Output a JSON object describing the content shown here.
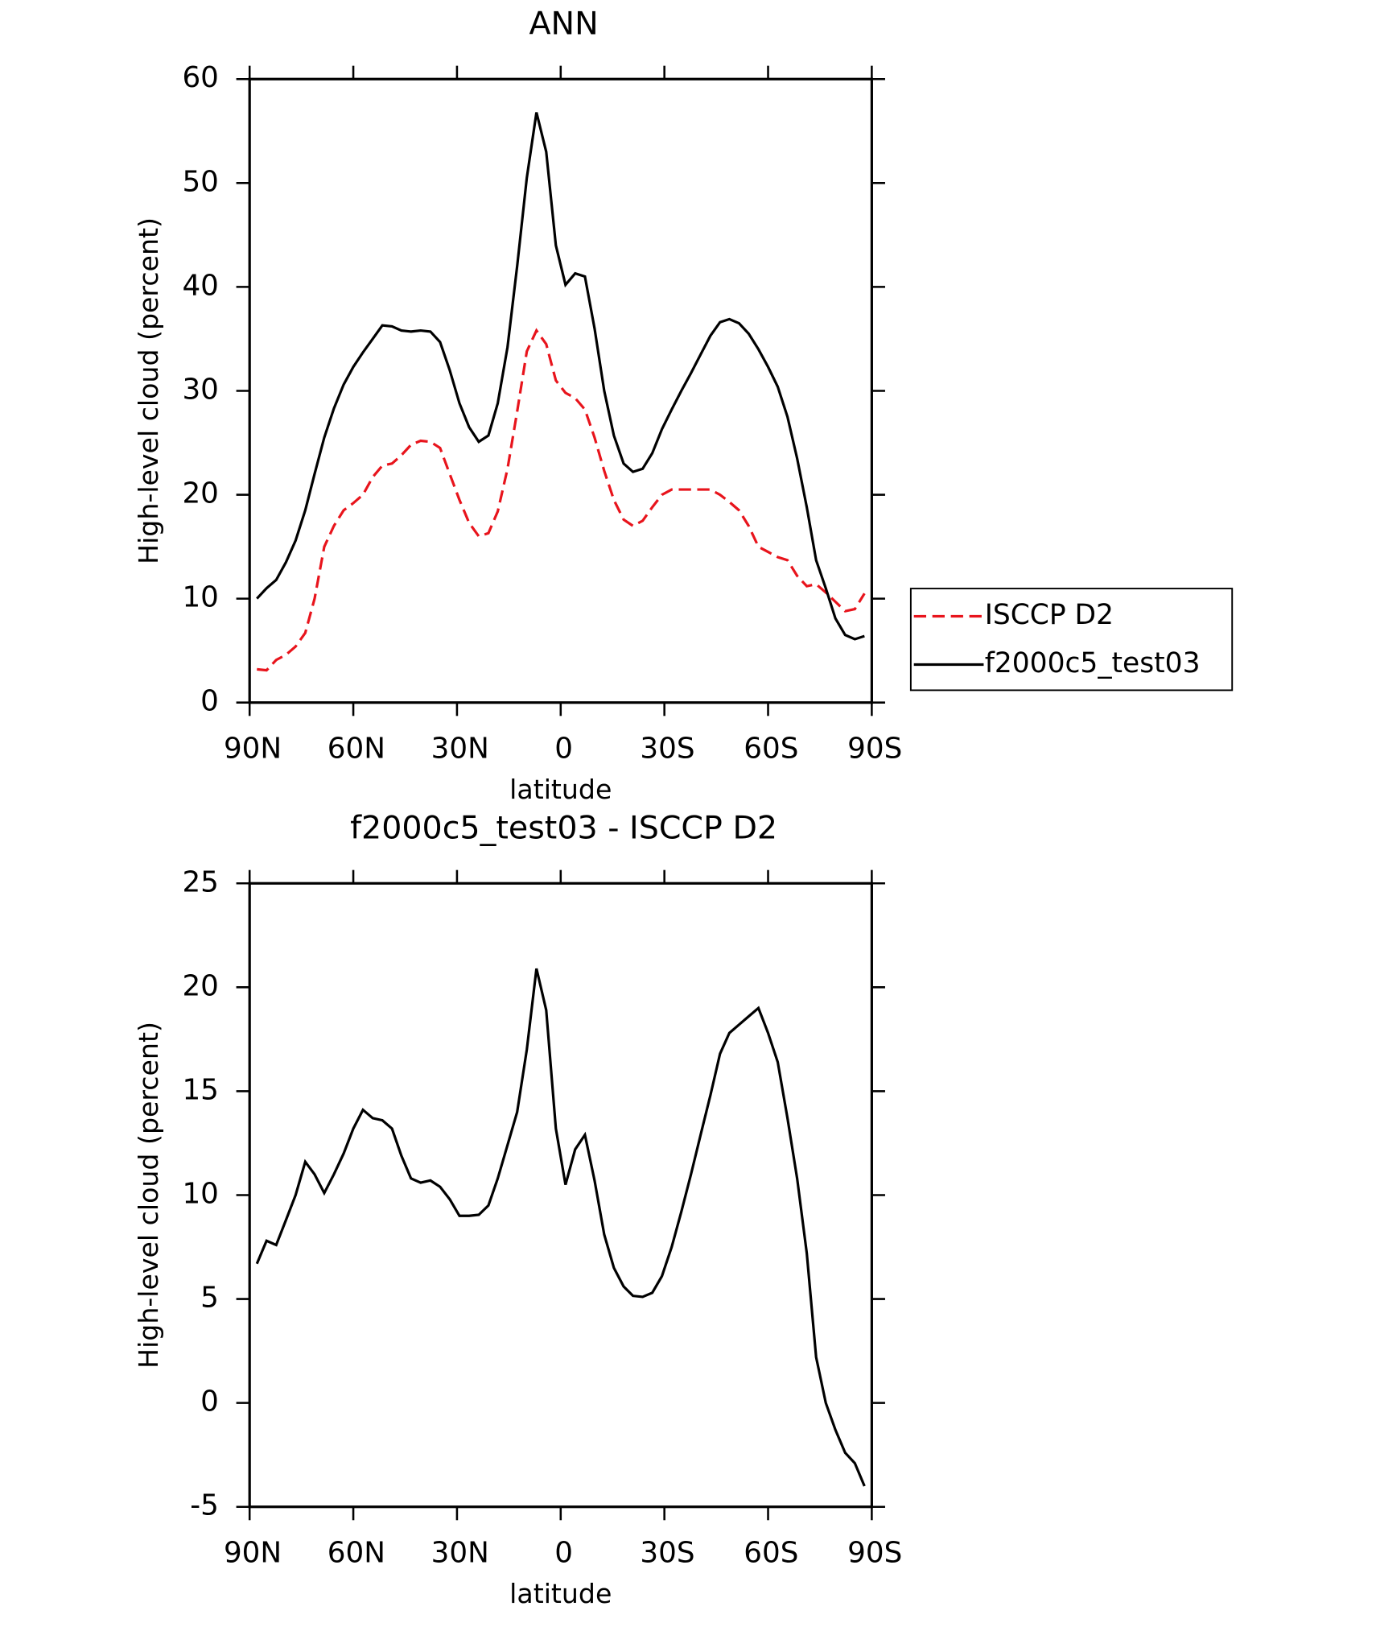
{
  "chart_data": [
    {
      "type": "line",
      "title": "ANN",
      "xlabel": "latitude",
      "ylabel": "High-level cloud (percent)",
      "x": [
        87.9,
        85.1,
        82.3,
        79.5,
        76.7,
        73.9,
        71.2,
        68.4,
        65.6,
        62.8,
        60.0,
        57.2,
        54.4,
        51.6,
        48.8,
        46.1,
        43.3,
        40.5,
        37.7,
        34.9,
        32.1,
        29.3,
        26.5,
        23.7,
        20.9,
        18.2,
        15.4,
        12.6,
        9.8,
        7.0,
        4.2,
        1.4,
        -1.4,
        -4.2,
        -7.0,
        -9.8,
        -12.6,
        -15.4,
        -18.2,
        -20.9,
        -23.7,
        -26.5,
        -29.3,
        -32.1,
        -34.9,
        -37.7,
        -40.5,
        -43.3,
        -46.1,
        -48.8,
        -51.6,
        -54.4,
        -57.2,
        -60.0,
        -62.8,
        -65.6,
        -68.4,
        -71.2,
        -73.9,
        -76.7,
        -79.5,
        -82.3,
        -85.1,
        -87.9
      ],
      "series": [
        {
          "name": "ISCCP D2",
          "color": "#e8141c",
          "dash": true,
          "values": [
            3.2,
            3.1,
            4.1,
            4.6,
            5.4,
            6.7,
            10,
            15,
            17,
            18.5,
            19.2,
            20,
            21.7,
            22.8,
            23,
            23.8,
            24.8,
            25.2,
            25.1,
            24.5,
            22,
            19.5,
            17.3,
            16,
            16.3,
            18.4,
            22.5,
            28,
            33.8,
            35.8,
            34.5,
            31,
            29.8,
            29.3,
            28.2,
            25.5,
            22.3,
            19.5,
            17.6,
            17,
            17.5,
            18.8,
            20,
            20.5,
            20.5,
            20.5,
            20.5,
            20.5,
            20,
            19.3,
            18.5,
            17,
            15,
            14.5,
            14,
            13.7,
            12.2,
            11.2,
            11.4,
            10.6,
            9.7,
            8.8,
            9,
            10.5
          ]
        },
        {
          "name": "f2000c5_test03",
          "color": "#000000",
          "dash": false,
          "values": [
            10,
            11,
            11.8,
            13.5,
            15.6,
            18.5,
            22,
            25.5,
            28.3,
            30.6,
            32.3,
            33.7,
            35,
            36.3,
            36.2,
            35.8,
            35.7,
            35.8,
            35.7,
            34.7,
            32,
            28.8,
            26.5,
            25.1,
            25.7,
            28.8,
            34.2,
            42,
            50.5,
            56.8,
            53,
            44,
            40.2,
            41.3,
            41,
            36,
            30,
            25.7,
            23,
            22.2,
            22.5,
            24,
            26.3,
            28.2,
            30,
            31.7,
            33.5,
            35.3,
            36.6,
            36.9,
            36.5,
            35.5,
            34,
            32.3,
            30.4,
            27.5,
            23.5,
            18.8,
            13.7,
            11,
            8.1,
            6.5,
            6.1,
            6.4
          ]
        }
      ],
      "xlim": [
        90,
        -90
      ],
      "xticks": [
        {
          "value": 90,
          "label": "90N"
        },
        {
          "value": 60,
          "label": "60N"
        },
        {
          "value": 30,
          "label": "30N"
        },
        0,
        {
          "value": -30,
          "label": "30S"
        },
        {
          "value": -60,
          "label": "60S"
        },
        {
          "value": -90,
          "label": "90S"
        }
      ],
      "ylim": [
        0,
        60
      ],
      "yticks": [
        0,
        10,
        20,
        30,
        40,
        50,
        60
      ],
      "legend": "right"
    },
    {
      "type": "line",
      "title": "f2000c5_test03 - ISCCP D2",
      "xlabel": "latitude",
      "ylabel": "High-level cloud (percent)",
      "x": [
        87.9,
        85.1,
        82.3,
        79.5,
        76.7,
        73.9,
        71.2,
        68.4,
        65.6,
        62.8,
        60.0,
        57.2,
        54.4,
        51.6,
        48.8,
        46.1,
        43.3,
        40.5,
        37.7,
        34.9,
        32.1,
        29.3,
        26.5,
        23.7,
        20.9,
        18.2,
        15.4,
        12.6,
        9.8,
        7.0,
        4.2,
        1.4,
        -1.4,
        -4.2,
        -7.0,
        -9.8,
        -12.6,
        -15.4,
        -18.2,
        -20.9,
        -23.7,
        -26.5,
        -29.3,
        -32.1,
        -34.9,
        -37.7,
        -40.5,
        -43.3,
        -46.1,
        -48.8,
        -51.6,
        -54.4,
        -57.2,
        -60.0,
        -62.8,
        -65.6,
        -68.4,
        -71.2,
        -73.9,
        -76.7,
        -79.5,
        -82.3,
        -85.1,
        -87.9
      ],
      "series": [
        {
          "color": "#000000",
          "dash": false,
          "values": [
            6.7,
            7.8,
            7.6,
            8.8,
            10,
            11.6,
            11,
            10.1,
            11,
            12,
            13.2,
            14.1,
            13.7,
            13.6,
            13.2,
            11.9,
            10.8,
            10.6,
            10.7,
            10.4,
            9.8,
            9,
            9,
            9.05,
            9.5,
            10.8,
            12.4,
            14,
            17,
            20.9,
            18.9,
            13.2,
            10.5,
            12.2,
            12.9,
            10.7,
            8.1,
            6.5,
            5.6,
            5.15,
            5.1,
            5.3,
            6.1,
            7.5,
            9.2,
            11,
            12.9,
            14.8,
            16.8,
            17.8,
            18.2,
            18.6,
            19,
            17.8,
            16.4,
            13.7,
            10.8,
            7.2,
            2.2,
            0,
            -1.3,
            -2.4,
            -2.9,
            -4
          ]
        }
      ],
      "xlim": [
        90,
        -90
      ],
      "xticks": [
        {
          "value": 90,
          "label": "90N"
        },
        {
          "value": 60,
          "label": "60N"
        },
        {
          "value": 30,
          "label": "30N"
        },
        0,
        {
          "value": -30,
          "label": "30S"
        },
        {
          "value": -60,
          "label": "60S"
        },
        {
          "value": -90,
          "label": "90S"
        }
      ],
      "ylim": [
        -5,
        25
      ],
      "yticks": [
        -5,
        0,
        5,
        10,
        15,
        20,
        25
      ]
    }
  ]
}
